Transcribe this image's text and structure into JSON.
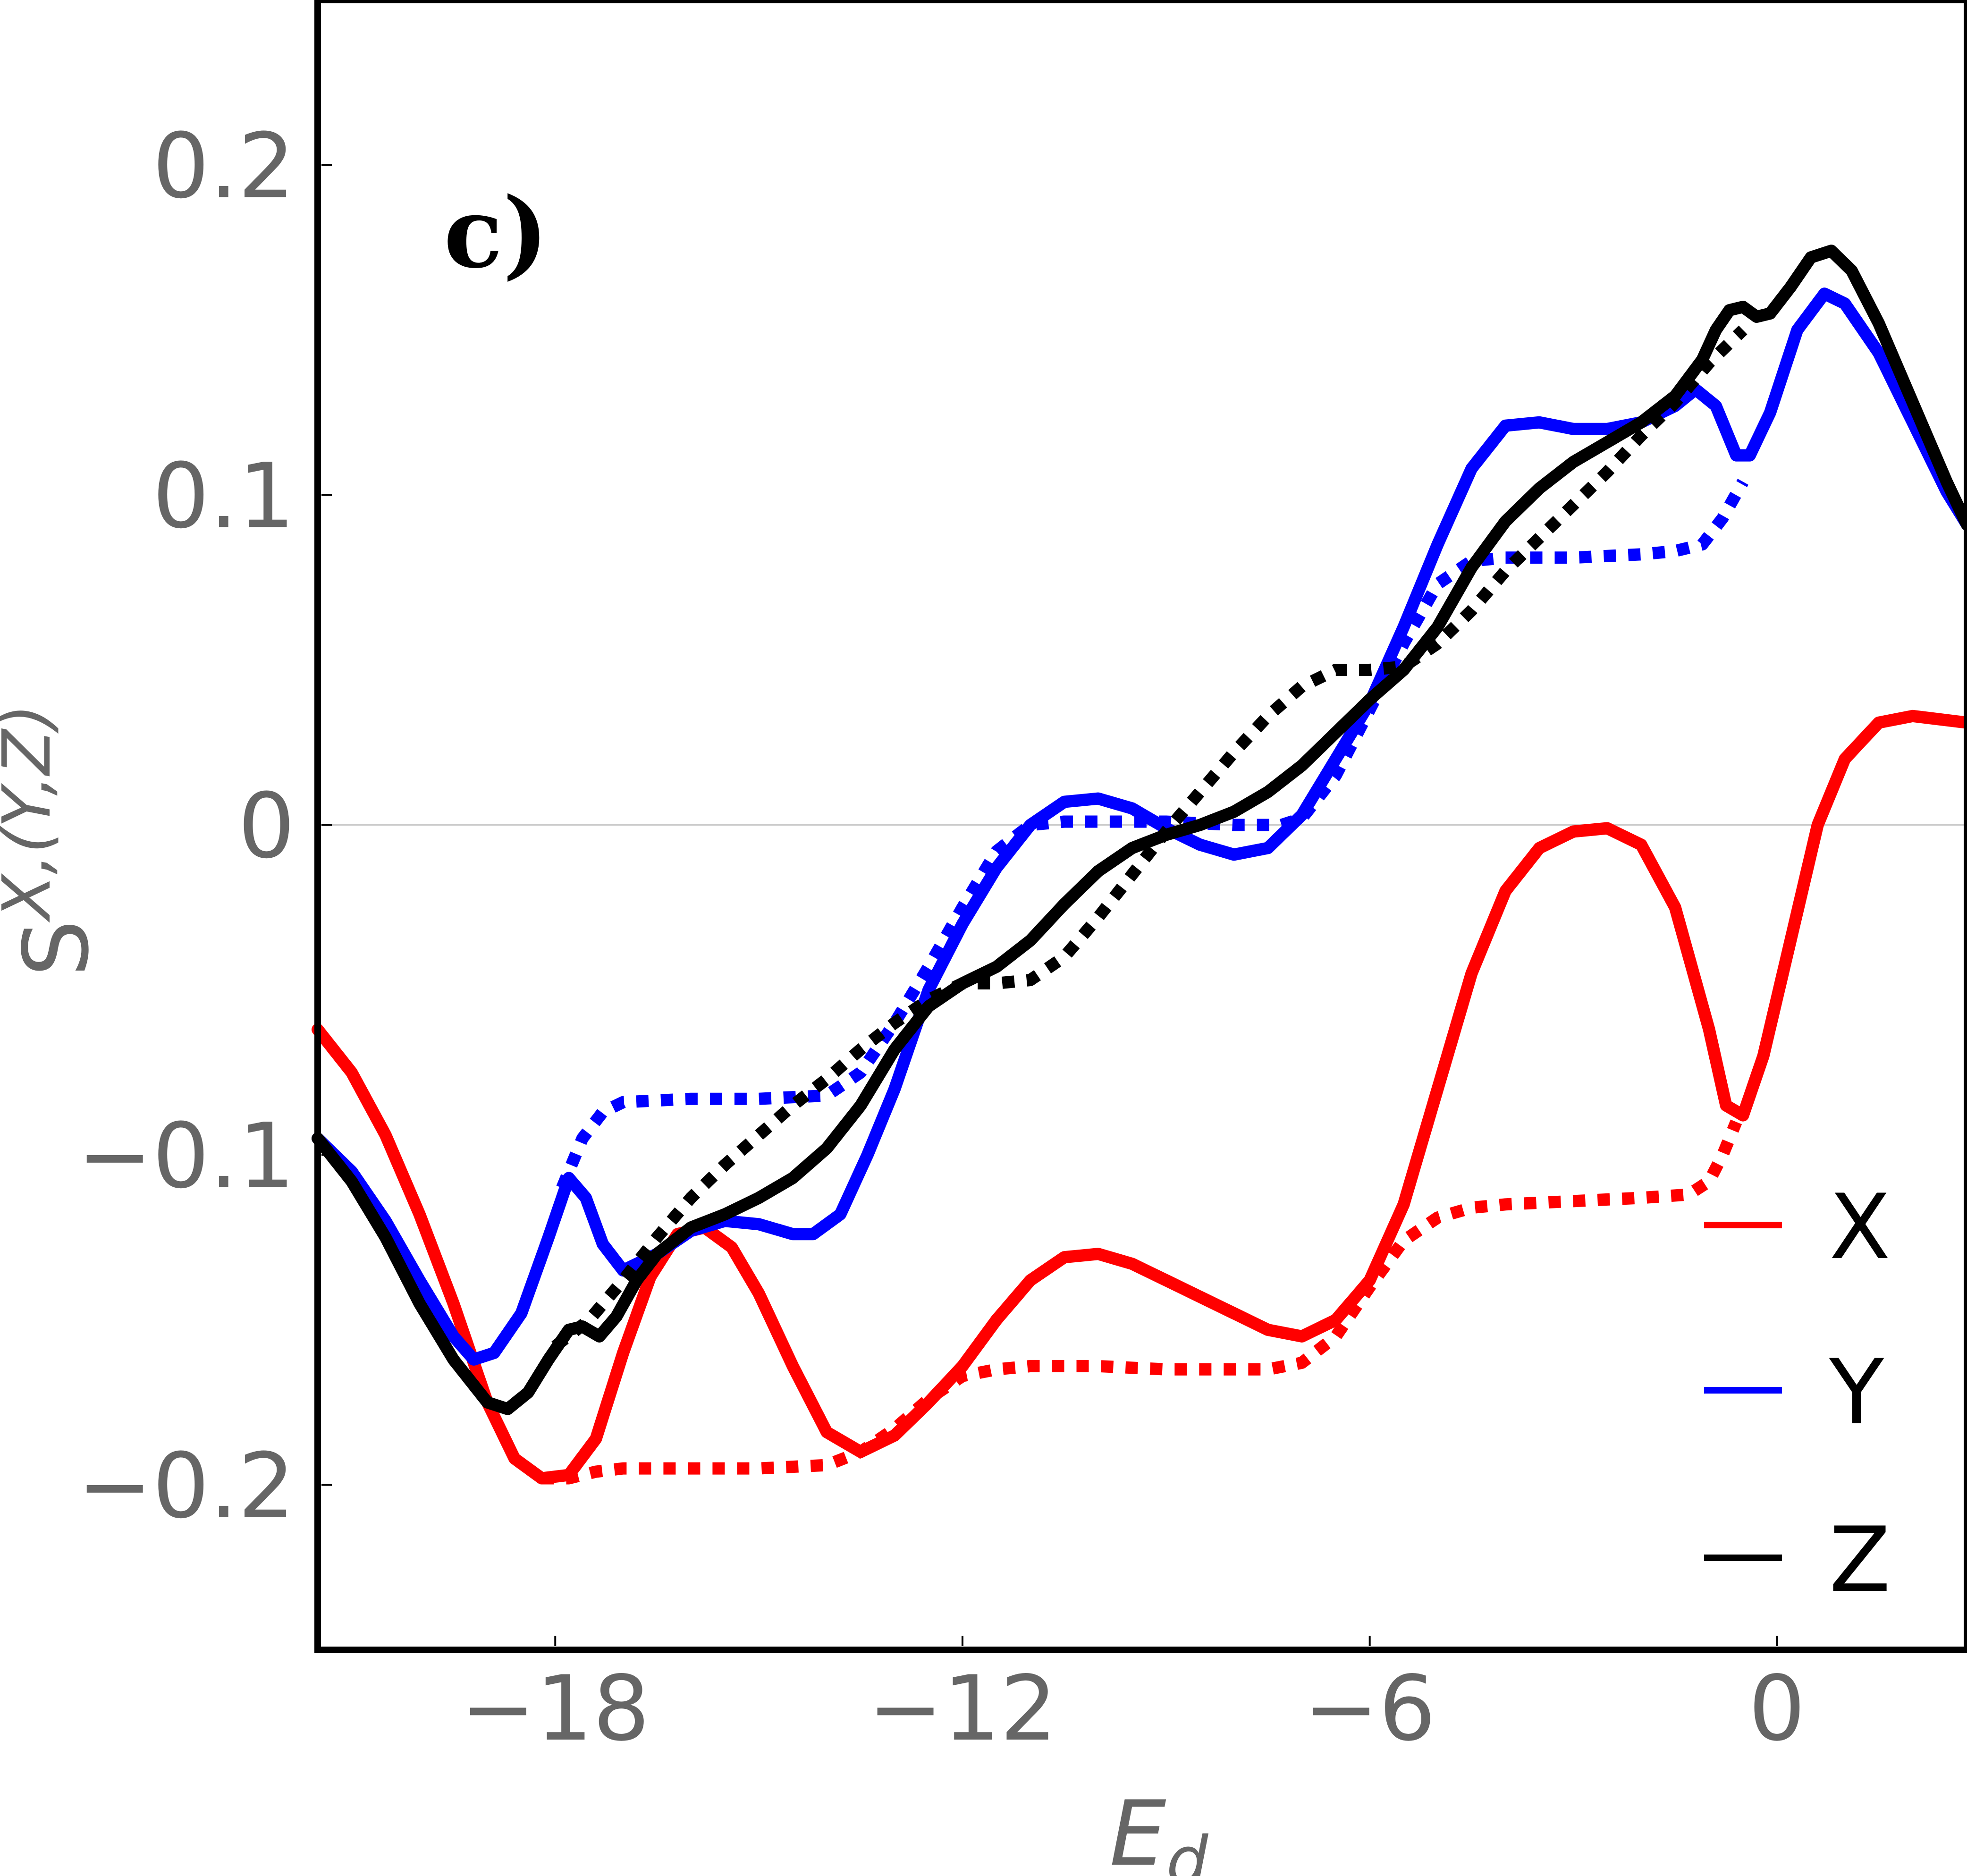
{
  "chart_data": {
    "type": "line",
    "panel_label": "c)",
    "xlabel": "E_d",
    "xlabel_main": "E",
    "xlabel_sub": "d",
    "ylabel_main": "S",
    "ylabel_sup": "X,(Y,Z)",
    "xlim": [
      -21.5,
      2.8
    ],
    "ylim": [
      -0.25,
      0.25
    ],
    "xticks": [
      -18,
      -12,
      -6,
      0
    ],
    "xtick_labels": [
      "−18",
      "−12",
      "−6",
      "0"
    ],
    "yticks": [
      -0.2,
      -0.1,
      0,
      0.1,
      0.2
    ],
    "ytick_labels": [
      "−0.2",
      "−0.1",
      "0",
      "0.1",
      "0.2"
    ],
    "zero_line": true,
    "legend_position": "bottom-right",
    "series": [
      {
        "name": "X",
        "style": "solid",
        "color": "#ff0000",
        "points": [
          [
            -21.5,
            -0.062
          ],
          [
            -21,
            -0.075
          ],
          [
            -20.5,
            -0.094
          ],
          [
            -20,
            -0.118
          ],
          [
            -19.5,
            -0.145
          ],
          [
            -19,
            -0.175
          ],
          [
            -18.6,
            -0.192
          ],
          [
            -18.2,
            -0.198
          ],
          [
            -17.8,
            -0.197
          ],
          [
            -17.4,
            -0.186
          ],
          [
            -17,
            -0.16
          ],
          [
            -16.6,
            -0.137
          ],
          [
            -16.2,
            -0.124
          ],
          [
            -15.8,
            -0.122
          ],
          [
            -15.4,
            -0.128
          ],
          [
            -15,
            -0.142
          ],
          [
            -14.5,
            -0.164
          ],
          [
            -14,
            -0.184
          ],
          [
            -13.5,
            -0.19
          ],
          [
            -13,
            -0.185
          ],
          [
            -12.5,
            -0.175
          ],
          [
            -12,
            -0.164
          ],
          [
            -11.5,
            -0.15
          ],
          [
            -11,
            -0.138
          ],
          [
            -10.5,
            -0.131
          ],
          [
            -10,
            -0.13
          ],
          [
            -9.5,
            -0.133
          ],
          [
            -9,
            -0.138
          ],
          [
            -8.5,
            -0.143
          ],
          [
            -8,
            -0.148
          ],
          [
            -7.5,
            -0.153
          ],
          [
            -7,
            -0.155
          ],
          [
            -6.5,
            -0.15
          ],
          [
            -6,
            -0.138
          ],
          [
            -5.5,
            -0.115
          ],
          [
            -5,
            -0.08
          ],
          [
            -4.5,
            -0.045
          ],
          [
            -4,
            -0.02
          ],
          [
            -3.5,
            -0.007
          ],
          [
            -3,
            -0.002
          ],
          [
            -2.5,
            -0.001
          ],
          [
            -2,
            -0.006
          ],
          [
            -1.5,
            -0.025
          ],
          [
            -1,
            -0.062
          ],
          [
            -0.75,
            -0.085
          ],
          [
            -0.5,
            -0.088
          ],
          [
            -0.2,
            -0.07
          ],
          [
            0.2,
            -0.035
          ],
          [
            0.6,
            0
          ],
          [
            1,
            0.02
          ],
          [
            1.5,
            0.031
          ],
          [
            2,
            0.033
          ],
          [
            2.8,
            0.031
          ]
        ]
      },
      {
        "name": "X",
        "style": "dotted",
        "color": "#ff0000",
        "points": [
          [
            -18.2,
            -0.198
          ],
          [
            -17.8,
            -0.198
          ],
          [
            -17.4,
            -0.196
          ],
          [
            -17,
            -0.195
          ],
          [
            -16,
            -0.195
          ],
          [
            -15,
            -0.195
          ],
          [
            -14,
            -0.194
          ],
          [
            -13.5,
            -0.19
          ],
          [
            -13,
            -0.183
          ],
          [
            -12.5,
            -0.174
          ],
          [
            -12,
            -0.167
          ],
          [
            -11.5,
            -0.165
          ],
          [
            -11,
            -0.164
          ],
          [
            -10,
            -0.164
          ],
          [
            -9,
            -0.165
          ],
          [
            -8,
            -0.165
          ],
          [
            -7.5,
            -0.165
          ],
          [
            -7,
            -0.163
          ],
          [
            -6.5,
            -0.155
          ],
          [
            -6,
            -0.14
          ],
          [
            -5.5,
            -0.126
          ],
          [
            -5,
            -0.119
          ],
          [
            -4.5,
            -0.116
          ],
          [
            -4,
            -0.115
          ],
          [
            -3,
            -0.114
          ],
          [
            -2,
            -0.113
          ],
          [
            -1.3,
            -0.112
          ],
          [
            -1,
            -0.108
          ],
          [
            -0.8,
            -0.1
          ],
          [
            -0.6,
            -0.09
          ]
        ]
      },
      {
        "name": "Y",
        "style": "solid",
        "color": "#0000ff",
        "points": [
          [
            -21.5,
            -0.095
          ],
          [
            -21,
            -0.105
          ],
          [
            -20.5,
            -0.12
          ],
          [
            -20,
            -0.138
          ],
          [
            -19.5,
            -0.155
          ],
          [
            -19.2,
            -0.162
          ],
          [
            -18.9,
            -0.16
          ],
          [
            -18.5,
            -0.148
          ],
          [
            -18.1,
            -0.125
          ],
          [
            -17.8,
            -0.107
          ],
          [
            -17.55,
            -0.113
          ],
          [
            -17.3,
            -0.127
          ],
          [
            -17,
            -0.135
          ],
          [
            -16.5,
            -0.13
          ],
          [
            -16,
            -0.123
          ],
          [
            -15.5,
            -0.12
          ],
          [
            -15,
            -0.121
          ],
          [
            -14.5,
            -0.124
          ],
          [
            -14.2,
            -0.124
          ],
          [
            -13.8,
            -0.118
          ],
          [
            -13.4,
            -0.1
          ],
          [
            -13,
            -0.08
          ],
          [
            -12.5,
            -0.05
          ],
          [
            -12,
            -0.03
          ],
          [
            -11.5,
            -0.013
          ],
          [
            -11,
            0
          ],
          [
            -10.5,
            0.007
          ],
          [
            -10,
            0.008
          ],
          [
            -9.5,
            0.005
          ],
          [
            -9,
            -0.001
          ],
          [
            -8.5,
            -0.006
          ],
          [
            -8,
            -0.009
          ],
          [
            -7.5,
            -0.007
          ],
          [
            -7,
            0.003
          ],
          [
            -6.5,
            0.02
          ],
          [
            -6,
            0.037
          ],
          [
            -5.5,
            0.06
          ],
          [
            -5,
            0.085
          ],
          [
            -4.5,
            0.108
          ],
          [
            -4,
            0.121
          ],
          [
            -3.5,
            0.122
          ],
          [
            -3,
            0.12
          ],
          [
            -2.5,
            0.12
          ],
          [
            -2,
            0.122
          ],
          [
            -1.5,
            0.127
          ],
          [
            -1.2,
            0.132
          ],
          [
            -0.9,
            0.127
          ],
          [
            -0.6,
            0.112
          ],
          [
            -0.4,
            0.112
          ],
          [
            -0.1,
            0.125
          ],
          [
            0.3,
            0.15
          ],
          [
            0.7,
            0.161
          ],
          [
            1,
            0.158
          ],
          [
            1.5,
            0.143
          ],
          [
            2,
            0.122
          ],
          [
            2.5,
            0.101
          ],
          [
            2.8,
            0.091
          ]
        ]
      },
      {
        "name": "Y",
        "style": "dotted",
        "color": "#0000ff",
        "points": [
          [
            -17.9,
            -0.11
          ],
          [
            -17.6,
            -0.095
          ],
          [
            -17.3,
            -0.087
          ],
          [
            -17,
            -0.084
          ],
          [
            -16,
            -0.083
          ],
          [
            -15,
            -0.083
          ],
          [
            -14,
            -0.082
          ],
          [
            -13.5,
            -0.075
          ],
          [
            -13,
            -0.06
          ],
          [
            -12.5,
            -0.043
          ],
          [
            -12,
            -0.025
          ],
          [
            -11.5,
            -0.008
          ],
          [
            -11,
            0
          ],
          [
            -10.5,
            0.001
          ],
          [
            -10,
            0.001
          ],
          [
            -9,
            0.001
          ],
          [
            -8,
            0
          ],
          [
            -7.3,
            0
          ],
          [
            -7,
            0.002
          ],
          [
            -6.5,
            0.015
          ],
          [
            -6,
            0.035
          ],
          [
            -5.5,
            0.055
          ],
          [
            -5,
            0.073
          ],
          [
            -4.5,
            0.08
          ],
          [
            -4,
            0.081
          ],
          [
            -3,
            0.081
          ],
          [
            -2,
            0.082
          ],
          [
            -1.5,
            0.083
          ],
          [
            -1.1,
            0.085
          ],
          [
            -0.8,
            0.093
          ],
          [
            -0.5,
            0.104
          ]
        ]
      },
      {
        "name": "Z",
        "style": "solid",
        "color": "#000000",
        "points": [
          [
            -21.5,
            -0.095
          ],
          [
            -21,
            -0.108
          ],
          [
            -20.5,
            -0.125
          ],
          [
            -20,
            -0.145
          ],
          [
            -19.5,
            -0.162
          ],
          [
            -19,
            -0.175
          ],
          [
            -18.7,
            -0.177
          ],
          [
            -18.4,
            -0.172
          ],
          [
            -18.1,
            -0.162
          ],
          [
            -17.8,
            -0.153
          ],
          [
            -17.6,
            -0.152
          ],
          [
            -17.35,
            -0.155
          ],
          [
            -17.1,
            -0.149
          ],
          [
            -16.8,
            -0.138
          ],
          [
            -16.5,
            -0.13
          ],
          [
            -16,
            -0.122
          ],
          [
            -15.5,
            -0.118
          ],
          [
            -15,
            -0.113
          ],
          [
            -14.5,
            -0.107
          ],
          [
            -14,
            -0.098
          ],
          [
            -13.5,
            -0.085
          ],
          [
            -13,
            -0.068
          ],
          [
            -12.5,
            -0.055
          ],
          [
            -12,
            -0.048
          ],
          [
            -11.5,
            -0.043
          ],
          [
            -11,
            -0.035
          ],
          [
            -10.5,
            -0.024
          ],
          [
            -10,
            -0.014
          ],
          [
            -9.5,
            -0.007
          ],
          [
            -9,
            -0.003
          ],
          [
            -8.5,
            0
          ],
          [
            -8,
            0.004
          ],
          [
            -7.5,
            0.01
          ],
          [
            -7,
            0.018
          ],
          [
            -6.5,
            0.028
          ],
          [
            -6,
            0.038
          ],
          [
            -5.5,
            0.047
          ],
          [
            -5,
            0.06
          ],
          [
            -4.5,
            0.078
          ],
          [
            -4,
            0.092
          ],
          [
            -3.5,
            0.102
          ],
          [
            -3,
            0.11
          ],
          [
            -2.5,
            0.116
          ],
          [
            -2,
            0.122
          ],
          [
            -1.5,
            0.13
          ],
          [
            -1.1,
            0.141
          ],
          [
            -0.9,
            0.15
          ],
          [
            -0.7,
            0.156
          ],
          [
            -0.5,
            0.157
          ],
          [
            -0.3,
            0.154
          ],
          [
            -0.1,
            0.155
          ],
          [
            0.2,
            0.163
          ],
          [
            0.5,
            0.172
          ],
          [
            0.8,
            0.174
          ],
          [
            1.1,
            0.168
          ],
          [
            1.5,
            0.152
          ],
          [
            2,
            0.128
          ],
          [
            2.5,
            0.104
          ],
          [
            2.8,
            0.091
          ]
        ]
      },
      {
        "name": "Z",
        "style": "dotted",
        "color": "#000000",
        "points": [
          [
            -18,
            -0.158
          ],
          [
            -17.5,
            -0.15
          ],
          [
            -17,
            -0.138
          ],
          [
            -16.5,
            -0.125
          ],
          [
            -16,
            -0.113
          ],
          [
            -15.5,
            -0.103
          ],
          [
            -15,
            -0.094
          ],
          [
            -14.5,
            -0.085
          ],
          [
            -14,
            -0.077
          ],
          [
            -13.5,
            -0.068
          ],
          [
            -13,
            -0.06
          ],
          [
            -12.5,
            -0.053
          ],
          [
            -12,
            -0.048
          ],
          [
            -11.5,
            -0.048
          ],
          [
            -11,
            -0.047
          ],
          [
            -10.5,
            -0.04
          ],
          [
            -10,
            -0.028
          ],
          [
            -9.5,
            -0.015
          ],
          [
            -9,
            -0.002
          ],
          [
            -8.5,
            0.01
          ],
          [
            -8,
            0.022
          ],
          [
            -7.5,
            0.033
          ],
          [
            -7,
            0.042
          ],
          [
            -6.5,
            0.047
          ],
          [
            -6,
            0.047
          ],
          [
            -5.5,
            0.048
          ],
          [
            -5,
            0.055
          ],
          [
            -4.5,
            0.065
          ],
          [
            -4,
            0.077
          ],
          [
            -3.5,
            0.087
          ],
          [
            -3,
            0.097
          ],
          [
            -2.5,
            0.107
          ],
          [
            -2,
            0.118
          ],
          [
            -1.5,
            0.128
          ],
          [
            -1,
            0.14
          ],
          [
            -0.5,
            0.15
          ]
        ]
      }
    ]
  },
  "legend": {
    "items": [
      {
        "label": "X",
        "color": "#ff0000"
      },
      {
        "label": "Y",
        "color": "#0000ff"
      },
      {
        "label": "Z",
        "color": "#000000"
      }
    ]
  }
}
